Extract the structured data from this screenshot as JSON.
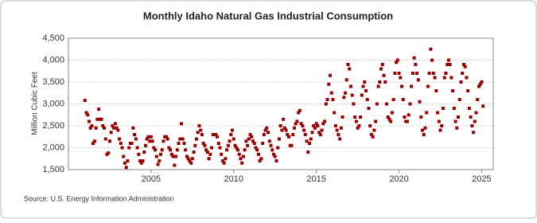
{
  "chart_data": {
    "type": "scatter",
    "title": "Monthly Idaho Natural Gas Industrial Consumption",
    "y_label": "Million Cubic Feet",
    "source": "Source: U.S. Energy Information Administration",
    "color": "#990000",
    "xlim": [
      2000,
      2025.7
    ],
    "xticks": [
      2005,
      2010,
      2015,
      2020,
      2025
    ],
    "ylim": [
      1500,
      4500
    ],
    "yticks": [
      {
        "value": 1500,
        "label": "1,500"
      },
      {
        "value": 2000,
        "label": "2,000"
      },
      {
        "value": 2500,
        "label": "2,500"
      },
      {
        "value": 3000,
        "label": "3,000"
      },
      {
        "value": 3500,
        "label": "3,500"
      },
      {
        "value": 4000,
        "label": "4,000"
      },
      {
        "value": 4500,
        "label": "4,500"
      }
    ],
    "grid": true,
    "x": [
      2001.0,
      2001.083,
      2001.167,
      2001.25,
      2001.333,
      2001.417,
      2001.5,
      2001.583,
      2001.667,
      2001.75,
      2001.833,
      2001.917,
      2002.0,
      2002.083,
      2002.167,
      2002.25,
      2002.333,
      2002.417,
      2002.5,
      2002.583,
      2002.667,
      2002.75,
      2002.833,
      2002.917,
      2003.0,
      2003.083,
      2003.167,
      2003.25,
      2003.333,
      2003.417,
      2003.5,
      2003.583,
      2003.667,
      2003.75,
      2003.833,
      2003.917,
      2004.0,
      2004.083,
      2004.167,
      2004.25,
      2004.333,
      2004.417,
      2004.5,
      2004.583,
      2004.667,
      2004.75,
      2004.833,
      2004.917,
      2005.0,
      2005.083,
      2005.167,
      2005.25,
      2005.333,
      2005.417,
      2005.5,
      2005.583,
      2005.667,
      2005.75,
      2005.833,
      2005.917,
      2006.0,
      2006.083,
      2006.167,
      2006.25,
      2006.333,
      2006.417,
      2006.5,
      2006.583,
      2006.667,
      2006.75,
      2006.833,
      2006.917,
      2007.0,
      2007.083,
      2007.167,
      2007.25,
      2007.333,
      2007.417,
      2007.5,
      2007.583,
      2007.667,
      2007.75,
      2007.833,
      2007.917,
      2008.0,
      2008.083,
      2008.167,
      2008.25,
      2008.333,
      2008.417,
      2008.5,
      2008.583,
      2008.667,
      2008.75,
      2008.833,
      2008.917,
      2009.0,
      2009.083,
      2009.167,
      2009.25,
      2009.333,
      2009.417,
      2009.5,
      2009.583,
      2009.667,
      2009.75,
      2009.833,
      2009.917,
      2010.0,
      2010.083,
      2010.167,
      2010.25,
      2010.333,
      2010.417,
      2010.5,
      2010.583,
      2010.667,
      2010.75,
      2010.833,
      2010.917,
      2011.0,
      2011.083,
      2011.167,
      2011.25,
      2011.333,
      2011.417,
      2011.5,
      2011.583,
      2011.667,
      2011.75,
      2011.833,
      2011.917,
      2012.0,
      2012.083,
      2012.167,
      2012.25,
      2012.333,
      2012.417,
      2012.5,
      2012.583,
      2012.667,
      2012.75,
      2012.833,
      2012.917,
      2013.0,
      2013.083,
      2013.167,
      2013.25,
      2013.333,
      2013.417,
      2013.5,
      2013.583,
      2013.667,
      2013.75,
      2013.833,
      2013.917,
      2014.0,
      2014.083,
      2014.167,
      2014.25,
      2014.333,
      2014.417,
      2014.5,
      2014.583,
      2014.667,
      2014.75,
      2014.833,
      2014.917,
      2015.0,
      2015.083,
      2015.167,
      2015.25,
      2015.333,
      2015.417,
      2015.5,
      2015.583,
      2015.667,
      2015.75,
      2015.833,
      2015.917,
      2016.0,
      2016.083,
      2016.167,
      2016.25,
      2016.333,
      2016.417,
      2016.5,
      2016.583,
      2016.667,
      2016.75,
      2016.833,
      2016.917,
      2017.0,
      2017.083,
      2017.167,
      2017.25,
      2017.333,
      2017.417,
      2017.5,
      2017.583,
      2017.667,
      2017.75,
      2017.833,
      2017.917,
      2018.0,
      2018.083,
      2018.167,
      2018.25,
      2018.333,
      2018.417,
      2018.5,
      2018.583,
      2018.667,
      2018.75,
      2018.833,
      2018.917,
      2019.0,
      2019.083,
      2019.167,
      2019.25,
      2019.333,
      2019.417,
      2019.5,
      2019.583,
      2019.667,
      2019.75,
      2019.833,
      2019.917,
      2020.0,
      2020.083,
      2020.167,
      2020.25,
      2020.333,
      2020.417,
      2020.5,
      2020.583,
      2020.667,
      2020.75,
      2020.833,
      2020.917,
      2021.0,
      2021.083,
      2021.167,
      2021.25,
      2021.333,
      2021.417,
      2021.5,
      2021.583,
      2021.667,
      2021.75,
      2021.833,
      2021.917,
      2022.0,
      2022.083,
      2022.167,
      2022.25,
      2022.333,
      2022.417,
      2022.5,
      2022.583,
      2022.667,
      2022.75,
      2022.833,
      2022.917,
      2023.0,
      2023.083,
      2023.167,
      2023.25,
      2023.333,
      2023.417,
      2023.5,
      2023.583,
      2023.667,
      2023.75,
      2023.833,
      2023.917,
      2024.0,
      2024.083,
      2024.167,
      2024.25,
      2024.333,
      2024.417,
      2024.5,
      2024.583,
      2024.667,
      2024.75,
      2024.833,
      2024.917,
      2025.0,
      2025.083
    ],
    "values": [
      3080,
      2800,
      2750,
      2600,
      2450,
      2500,
      2100,
      2150,
      2450,
      2650,
      2880,
      2650,
      2650,
      2500,
      2450,
      2200,
      1850,
      1880,
      2150,
      2350,
      2500,
      2450,
      2550,
      2450,
      2400,
      2200,
      2100,
      2000,
      1800,
      1650,
      1550,
      1700,
      2000,
      2100,
      2100,
      2450,
      2300,
      2200,
      2000,
      1850,
      1700,
      1650,
      1700,
      1900,
      2050,
      2200,
      2250,
      2150,
      2250,
      2150,
      2000,
      1950,
      1800,
      1620,
      1700,
      1850,
      1950,
      2150,
      2250,
      2250,
      2200,
      2000,
      1950,
      1850,
      1800,
      1600,
      1800,
      1950,
      2100,
      2200,
      2550,
      2200,
      2100,
      1950,
      1800,
      1750,
      1700,
      1650,
      1750,
      1900,
      2050,
      2200,
      2350,
      2500,
      2400,
      2300,
      2100,
      2050,
      1950,
      1900,
      1750,
      1850,
      2000,
      2300,
      2300,
      2300,
      2250,
      2100,
      2000,
      1850,
      1700,
      1650,
      1750,
      1950,
      2050,
      2150,
      2300,
      2400,
      2200,
      2050,
      2000,
      1950,
      1850,
      1750,
      1650,
      1800,
      1950,
      2150,
      2050,
      2200,
      2300,
      2250,
      2150,
      2100,
      2000,
      1950,
      1850,
      1700,
      1750,
      2100,
      2300,
      2400,
      2450,
      2350,
      2150,
      2050,
      1950,
      1850,
      1800,
      1700,
      2000,
      2200,
      2500,
      2400,
      2650,
      2450,
      2400,
      2300,
      2250,
      2050,
      2050,
      2300,
      2450,
      2550,
      2600,
      2800,
      2850,
      2550,
      2500,
      2400,
      2300,
      2150,
      1900,
      2100,
      2200,
      2350,
      2500,
      2450,
      2550,
      2500,
      2350,
      2300,
      2400,
      2550,
      2600,
      3000,
      3100,
      3450,
      3650,
      3250,
      3100,
      2800,
      2500,
      2400,
      2300,
      2200,
      2450,
      2700,
      3150,
      3250,
      3550,
      3900,
      3800,
      3400,
      3200,
      3000,
      2700,
      2600,
      2450,
      2500,
      2700,
      3200,
      3400,
      3500,
      3300,
      3100,
      2900,
      2500,
      2300,
      2250,
      2400,
      2600,
      3000,
      3400,
      3500,
      3800,
      3900,
      3650,
      3500,
      3000,
      2700,
      2650,
      2600,
      2800,
      3100,
      3700,
      3950,
      4000,
      3700,
      3600,
      3400,
      3100,
      2700,
      2600,
      2600,
      2750,
      3000,
      3400,
      3700,
      4050,
      3900,
      3700,
      3550,
      3050,
      2700,
      2400,
      2300,
      2450,
      2800,
      3400,
      3700,
      4250,
      4000,
      3700,
      3600,
      3300,
      2800,
      2600,
      2400,
      2500,
      2900,
      3600,
      3700,
      3900,
      4000,
      3900,
      3600,
      3300,
      2900,
      2600,
      2450,
      2700,
      3100,
      3500,
      3700,
      3900,
      3850,
      3600,
      3300,
      2900,
      2700,
      2500,
      2350,
      2600,
      2800,
      3100,
      3400,
      3450,
      3500,
      2950
    ]
  }
}
